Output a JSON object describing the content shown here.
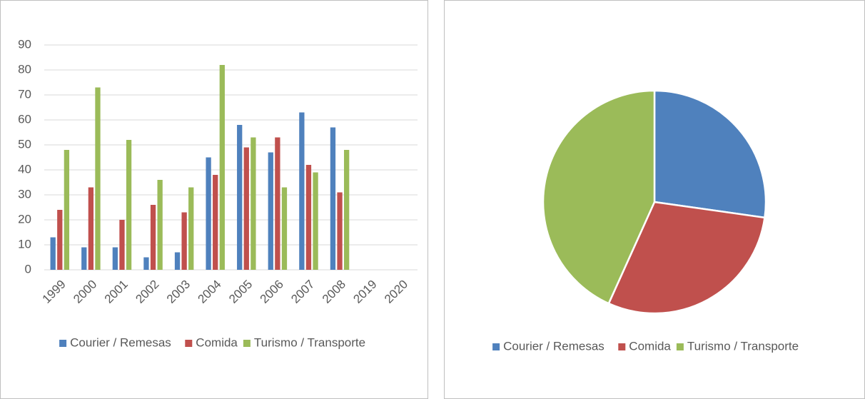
{
  "chart_data": [
    {
      "type": "bar",
      "categories": [
        "1999",
        "2000",
        "2001",
        "2002",
        "2003",
        "2004",
        "2005",
        "2006",
        "2007",
        "2008",
        "2019",
        "2020"
      ],
      "series": [
        {
          "name": "Courier / Remesas",
          "color": "#4f81bd",
          "values": [
            13,
            9,
            9,
            5,
            7,
            45,
            58,
            47,
            63,
            57,
            null,
            null
          ]
        },
        {
          "name": "Comida",
          "color": "#c0504d",
          "values": [
            24,
            33,
            20,
            26,
            23,
            38,
            49,
            53,
            42,
            31,
            null,
            null
          ]
        },
        {
          "name": "Turismo / Transporte",
          "color": "#9bbb59",
          "values": [
            48,
            73,
            52,
            36,
            33,
            82,
            53,
            33,
            39,
            48,
            null,
            null
          ]
        }
      ],
      "ylim": [
        0,
        90
      ],
      "yticks": [
        0,
        10,
        20,
        30,
        40,
        50,
        60,
        70,
        80,
        90
      ],
      "grid": true,
      "legend": "bottom"
    },
    {
      "type": "pie",
      "categories": [
        "Courier / Remesas",
        "Comida",
        "Turismo / Transporte"
      ],
      "values": [
        313,
        339,
        497
      ],
      "colors": [
        "#4f81bd",
        "#c0504d",
        "#9bbb59"
      ],
      "legend": "bottom"
    }
  ]
}
